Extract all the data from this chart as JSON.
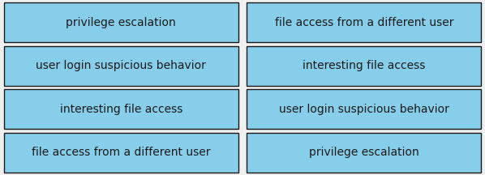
{
  "background_color": "#f0f0f0",
  "box_fill_color": "#87CEEB",
  "box_edge_color": "#1a1a1a",
  "text_color": "#1a1a1a",
  "font_size": 10,
  "left_column": [
    "privilege escalation",
    "user login suspicious behavior",
    "interesting file access",
    "file access from a different user"
  ],
  "right_column": [
    "file access from a different user",
    "interesting file access",
    "user login suspicious behavior",
    "privilege escalation"
  ],
  "figsize": [
    5.98,
    2.16
  ],
  "dpi": 100
}
